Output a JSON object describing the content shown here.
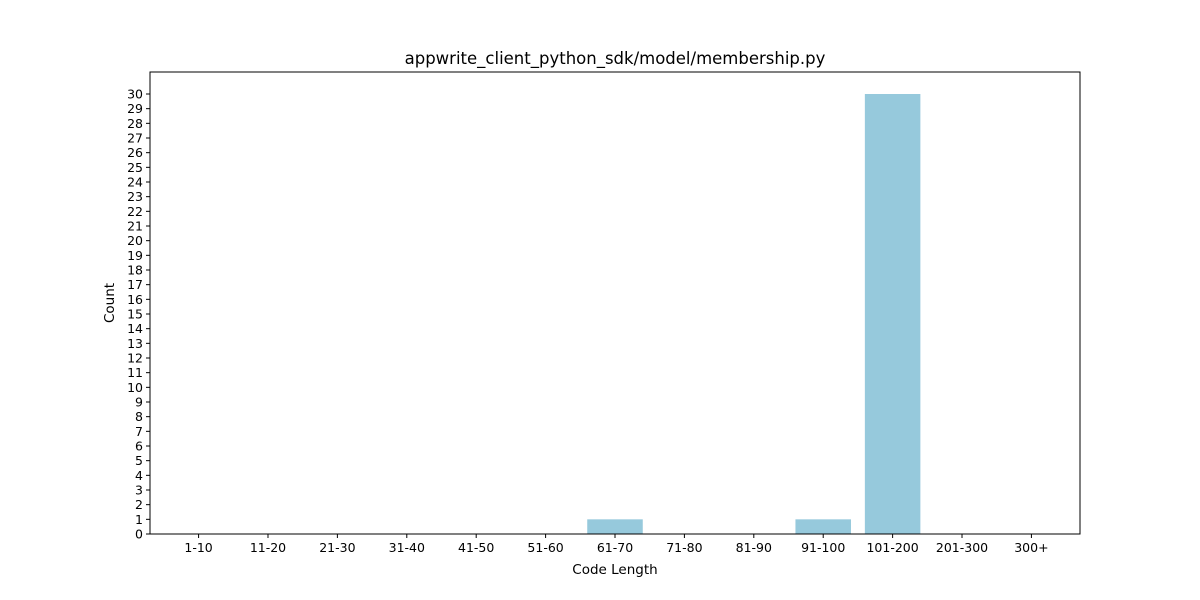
{
  "chart_data": {
    "type": "bar",
    "title": "appwrite_client_python_sdk/model/membership.py",
    "xlabel": "Code Length",
    "ylabel": "Count",
    "categories": [
      "1-10",
      "11-20",
      "21-30",
      "31-40",
      "41-50",
      "51-60",
      "61-70",
      "71-80",
      "81-90",
      "91-100",
      "101-200",
      "201-300",
      "300+"
    ],
    "values": [
      0,
      0,
      0,
      0,
      0,
      0,
      1,
      0,
      0,
      1,
      30,
      0,
      0
    ],
    "ylim": [
      0,
      31.5
    ],
    "yticks": [
      0,
      1,
      2,
      3,
      4,
      5,
      6,
      7,
      8,
      9,
      10,
      11,
      12,
      13,
      14,
      15,
      16,
      17,
      18,
      19,
      20,
      21,
      22,
      23,
      24,
      25,
      26,
      27,
      28,
      29,
      30
    ],
    "grid": false,
    "bar_color": "#96c9dc"
  }
}
